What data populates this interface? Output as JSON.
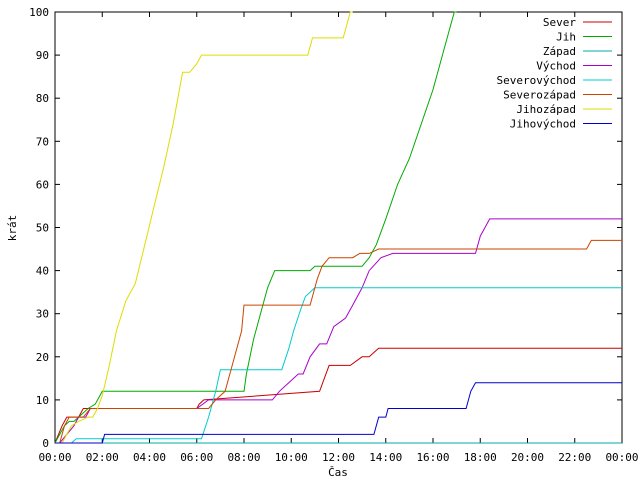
{
  "chart_data": {
    "type": "line",
    "title": "",
    "xlabel": "Čas",
    "ylabel": "krát",
    "xlim": [
      0,
      24
    ],
    "ylim": [
      0,
      100
    ],
    "x_ticks": [
      {
        "value": 0,
        "label": "00:00"
      },
      {
        "value": 2,
        "label": "02:00"
      },
      {
        "value": 4,
        "label": "04:00"
      },
      {
        "value": 6,
        "label": "06:00"
      },
      {
        "value": 8,
        "label": "08:00"
      },
      {
        "value": 10,
        "label": "10:00"
      },
      {
        "value": 12,
        "label": "12:00"
      },
      {
        "value": 14,
        "label": "14:00"
      },
      {
        "value": 16,
        "label": "16:00"
      },
      {
        "value": 18,
        "label": "18:00"
      },
      {
        "value": 20,
        "label": "20:00"
      },
      {
        "value": 22,
        "label": "22:00"
      },
      {
        "value": 24,
        "label": "00:00"
      }
    ],
    "y_ticks": [
      {
        "value": 0,
        "label": "0"
      },
      {
        "value": 10,
        "label": "10"
      },
      {
        "value": 20,
        "label": "20"
      },
      {
        "value": 30,
        "label": "30"
      },
      {
        "value": 40,
        "label": "40"
      },
      {
        "value": 50,
        "label": "50"
      },
      {
        "value": 60,
        "label": "60"
      },
      {
        "value": 70,
        "label": "70"
      },
      {
        "value": 80,
        "label": "80"
      },
      {
        "value": 90,
        "label": "90"
      },
      {
        "value": 100,
        "label": "100"
      }
    ],
    "grid": false,
    "legend_position": "top-right",
    "series": [
      {
        "name": "Sever",
        "color": "#cc0000",
        "x": [
          0,
          0.15,
          0.3,
          0.5,
          0.7,
          1.0,
          1.2,
          1.4,
          6.0,
          6.1,
          6.3,
          11.2,
          11.4,
          11.6,
          12.5,
          13.0,
          13.3,
          13.5,
          13.7,
          24.0
        ],
        "y": [
          0,
          2,
          4,
          6,
          6,
          6,
          8,
          8,
          8,
          9,
          10,
          12,
          15,
          18,
          18,
          20,
          20,
          21,
          22,
          22
        ]
      },
      {
        "name": "Jih",
        "color": "#00aa00",
        "x": [
          0,
          0.2,
          0.4,
          0.6,
          0.8,
          1.0,
          1.4,
          1.7,
          1.9,
          2.0,
          2.2,
          6.5,
          7.0,
          7.8,
          8.0,
          8.1,
          8.4,
          8.7,
          9.0,
          9.3,
          10.8,
          11.0,
          13.0,
          13.3,
          13.6,
          14.0,
          14.5,
          15.0,
          15.5,
          16.0,
          16.5,
          16.9,
          17.0
        ],
        "y": [
          0,
          2,
          4,
          5,
          5,
          6,
          8,
          9,
          11,
          12,
          12,
          12,
          12,
          12,
          12,
          16,
          24,
          30,
          36,
          40,
          40,
          41,
          41,
          43,
          46,
          52,
          60,
          66,
          74,
          82,
          92,
          100,
          100
        ]
      },
      {
        "name": "Západ",
        "color": "#00aaaa",
        "x": [
          0,
          0.4,
          0.8,
          0.9,
          24.0
        ],
        "y": [
          0,
          0,
          0,
          0,
          0
        ]
      },
      {
        "name": "Východ",
        "color": "#aa00cc",
        "x": [
          0,
          0.2,
          0.5,
          0.8,
          1.0,
          1.3,
          1.5,
          6.0,
          6.5,
          9.2,
          9.5,
          10.3,
          10.5,
          10.8,
          11.2,
          11.5,
          11.8,
          12.3,
          12.6,
          13.0,
          13.3,
          13.8,
          14.3,
          17.8,
          18.0,
          18.2,
          18.4,
          24.0
        ],
        "y": [
          0,
          0,
          2,
          4,
          6,
          6,
          8,
          8,
          10,
          10,
          12,
          16,
          16,
          20,
          23,
          23,
          27,
          29,
          32,
          36,
          40,
          43,
          44,
          44,
          48,
          50,
          52,
          52
        ]
      },
      {
        "name": "Severovýchod",
        "color": "#00cccc",
        "x": [
          0,
          0.7,
          0.9,
          1.0,
          6.2,
          6.5,
          6.8,
          7.0,
          7.2,
          7.5,
          8.0,
          9.6,
          9.9,
          10.1,
          10.4,
          10.6,
          11.0,
          24.0
        ],
        "y": [
          0,
          0,
          1,
          1,
          1,
          6,
          12,
          17,
          17,
          17,
          17,
          17,
          22,
          26,
          31,
          34,
          36,
          36
        ]
      },
      {
        "name": "Severozápad",
        "color": "#cc4400",
        "x": [
          0,
          0.2,
          0.4,
          0.6,
          0.8,
          1.0,
          1.2,
          1.5,
          6.0,
          6.5,
          6.8,
          7.2,
          7.5,
          7.9,
          8.0,
          8.3,
          10.8,
          11.1,
          11.3,
          11.6,
          12.6,
          12.9,
          13.3,
          13.7,
          22.5,
          22.7,
          24.0
        ],
        "y": [
          0,
          0,
          4,
          6,
          6,
          6,
          6,
          8,
          8,
          8,
          10,
          12,
          18,
          26,
          32,
          32,
          32,
          38,
          41,
          43,
          43,
          44,
          44,
          45,
          45,
          47,
          47
        ]
      },
      {
        "name": "Jihozápad",
        "color": "#dddd00",
        "x": [
          0,
          0.3,
          0.5,
          0.7,
          1.0,
          1.4,
          1.6,
          1.8,
          2.0,
          2.3,
          2.6,
          3.0,
          3.4,
          3.8,
          4.2,
          4.6,
          5.0,
          5.4,
          5.7,
          6.0,
          6.2,
          6.5,
          10.7,
          10.9,
          12.2,
          12.5,
          12.6
        ],
        "y": [
          0,
          0,
          2,
          4,
          5,
          6,
          6,
          8,
          11,
          18,
          26,
          33,
          37,
          46,
          55,
          64,
          74,
          86,
          86,
          88,
          90,
          90,
          90,
          94,
          94,
          100,
          100
        ]
      },
      {
        "name": "Jihovýchod",
        "color": "#0000cc",
        "x": [
          0,
          2.0,
          2.1,
          6.0,
          12.0,
          13.5,
          13.7,
          14.0,
          14.1,
          17.4,
          17.6,
          17.8,
          24.0
        ],
        "y": [
          0,
          0,
          2,
          2,
          2,
          2,
          6,
          6,
          8,
          8,
          12,
          14,
          14
        ]
      }
    ]
  }
}
